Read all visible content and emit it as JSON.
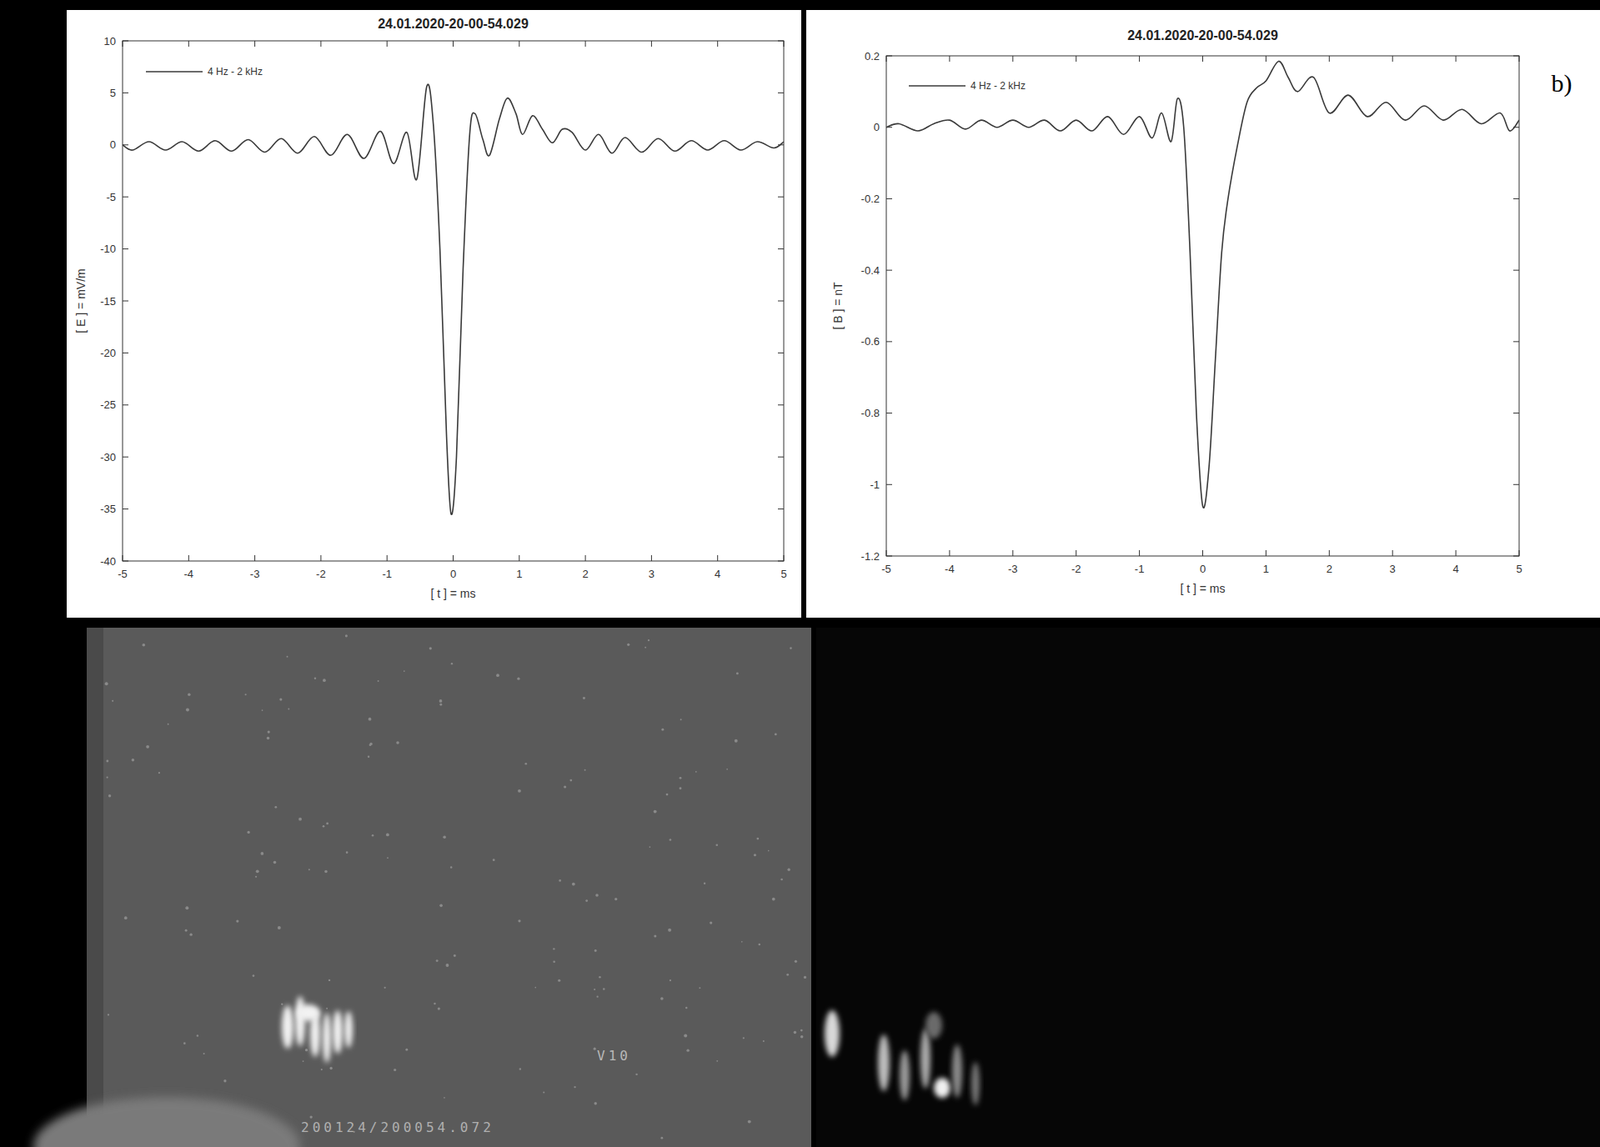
{
  "chart_data": [
    {
      "type": "line",
      "title": "24.01.2020-20-00-54.029",
      "x_label": "[ t ] = ms",
      "y_label": "[ E ] = mV/m",
      "xlim": [
        -5,
        5
      ],
      "xticks": [
        -5,
        -4,
        -3,
        -2,
        -1,
        0,
        1,
        2,
        3,
        4,
        5
      ],
      "ylim": [
        -40,
        10
      ],
      "yticks": [
        10,
        5,
        0,
        -5,
        -10,
        -15,
        -20,
        -25,
        -30,
        -35,
        -40
      ],
      "grid": false,
      "legend": "upper left",
      "x": [
        -5,
        -4.85,
        -4.6,
        -4.35,
        -4.1,
        -3.85,
        -3.6,
        -3.35,
        -3.1,
        -2.85,
        -2.6,
        -2.35,
        -2.1,
        -1.85,
        -1.6,
        -1.35,
        -1.1,
        -0.9,
        -0.7,
        -0.55,
        -0.4,
        -0.3,
        -0.2,
        -0.1,
        -0.03,
        0.05,
        0.15,
        0.25,
        0.33,
        0.45,
        0.55,
        0.7,
        0.82,
        0.95,
        1.05,
        1.2,
        1.35,
        1.5,
        1.65,
        1.8,
        2,
        2.2,
        2.4,
        2.6,
        2.85,
        3.1,
        3.35,
        3.6,
        3.85,
        4.1,
        4.35,
        4.6,
        4.85,
        5
      ],
      "series": [
        {
          "name": "4 Hz - 2 kHz",
          "color": "#3a3a3a",
          "values": [
            0,
            -0.5,
            0.3,
            -0.5,
            0.3,
            -0.6,
            0.4,
            -0.6,
            0.5,
            -0.7,
            0.6,
            -0.8,
            0.8,
            -1.0,
            1.0,
            -1.3,
            1.3,
            -1.8,
            1.2,
            -3.3,
            5.6,
            2,
            -10,
            -28,
            -35.5,
            -30,
            -12,
            1,
            3,
            0.5,
            -1,
            2.5,
            4.5,
            3,
            1,
            2.8,
            1.5,
            0.2,
            1.5,
            1.2,
            -0.5,
            1,
            -0.8,
            0.7,
            -0.7,
            0.6,
            -0.6,
            0.4,
            -0.5,
            0.4,
            -0.5,
            0.3,
            -0.3,
            0.3
          ]
        }
      ]
    },
    {
      "type": "line",
      "title": "24.01.2020-20-00-54.029",
      "x_label": "[ t ] = ms",
      "y_label": "[ B ] = nT",
      "xlim": [
        -5,
        5
      ],
      "xticks": [
        -5,
        -4,
        -3,
        -2,
        -1,
        0,
        1,
        2,
        3,
        4,
        5
      ],
      "ylim": [
        -1.2,
        0.2
      ],
      "yticks": [
        0.2,
        0,
        -0.2,
        -0.4,
        -0.6,
        -0.8,
        -1,
        -1.2
      ],
      "grid": false,
      "legend": "upper left",
      "x": [
        -5,
        -4.8,
        -4.5,
        -4.25,
        -4,
        -3.75,
        -3.5,
        -3.25,
        -3,
        -2.75,
        -2.5,
        -2.25,
        -2,
        -1.75,
        -1.5,
        -1.25,
        -1,
        -0.8,
        -0.65,
        -0.5,
        -0.4,
        -0.3,
        -0.2,
        -0.1,
        0,
        0.1,
        0.2,
        0.3,
        0.4,
        0.55,
        0.7,
        0.85,
        1.0,
        1.2,
        1.35,
        1.5,
        1.75,
        2,
        2.3,
        2.6,
        2.9,
        3.2,
        3.5,
        3.8,
        4.1,
        4.4,
        4.7,
        4.85,
        5
      ],
      "series": [
        {
          "name": "4 Hz - 2 kHz",
          "color": "#3a3a3a",
          "values": [
            0,
            0.01,
            -0.01,
            0.01,
            0.02,
            -0.005,
            0.02,
            0,
            0.02,
            0,
            0.02,
            -0.01,
            0.02,
            -0.01,
            0.03,
            -0.02,
            0.03,
            -0.03,
            0.04,
            -0.04,
            0.08,
            0,
            -0.35,
            -0.8,
            -1.06,
            -0.95,
            -0.65,
            -0.35,
            -0.2,
            -0.05,
            0.07,
            0.11,
            0.13,
            0.185,
            0.14,
            0.1,
            0.14,
            0.04,
            0.09,
            0.03,
            0.07,
            0.02,
            0.06,
            0.02,
            0.05,
            0.01,
            0.04,
            -0.01,
            0.02
          ]
        }
      ]
    }
  ],
  "figure": {
    "panel_label": "b)",
    "overlay_text": [
      "V10",
      "200124/200054.072"
    ]
  }
}
